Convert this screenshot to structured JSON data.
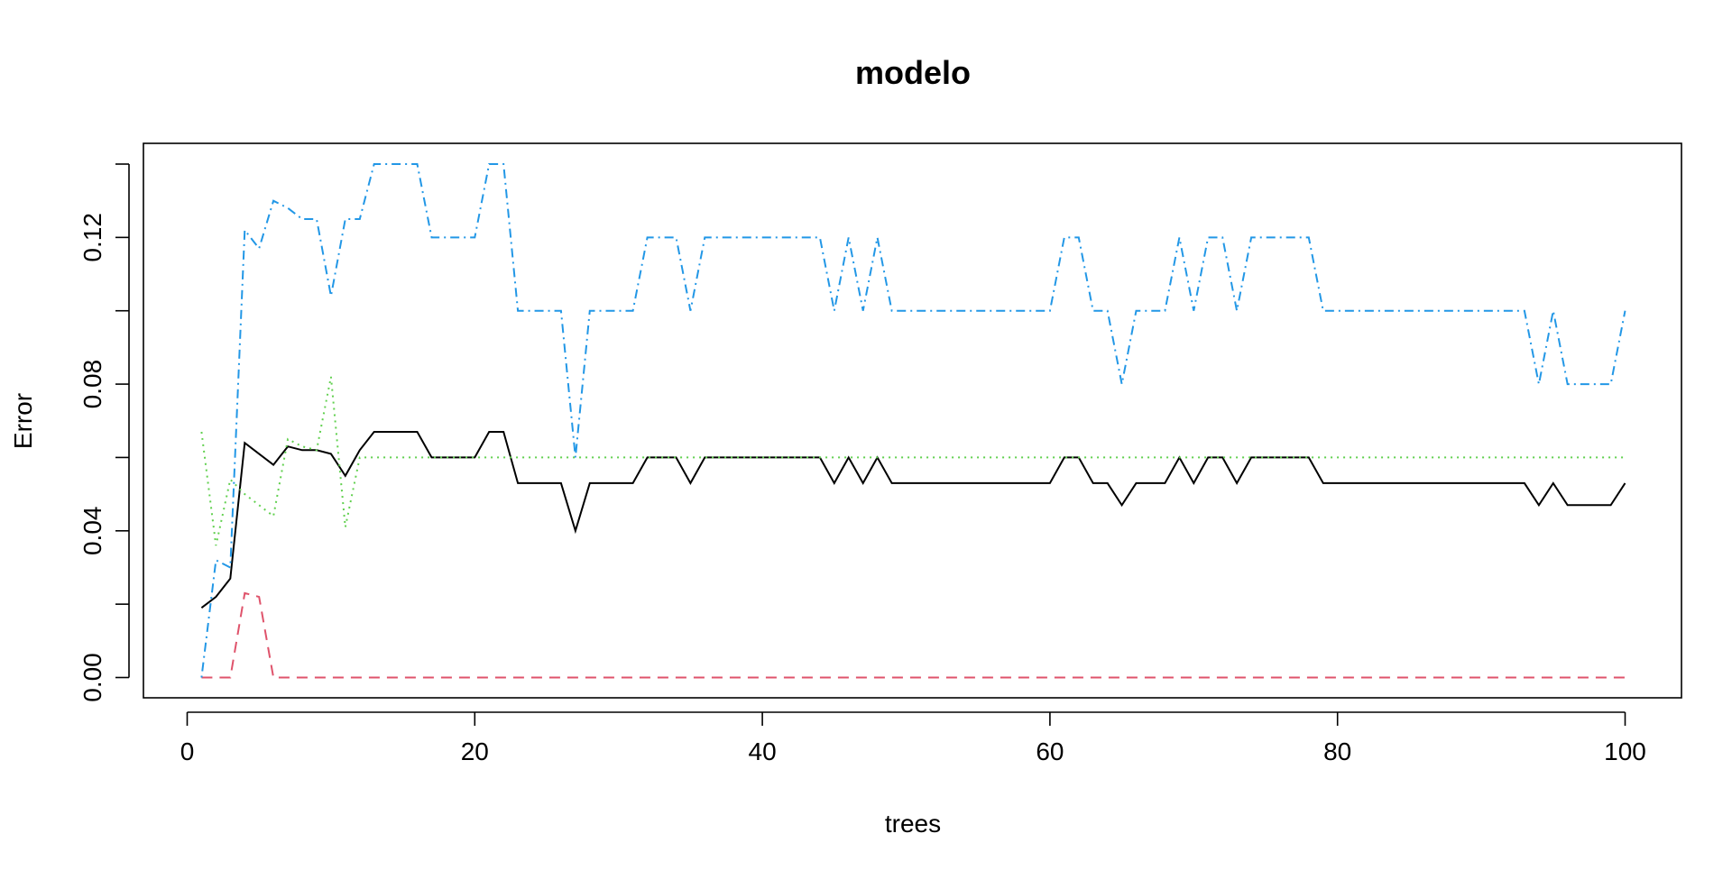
{
  "chart_data": {
    "type": "line",
    "title": "modelo",
    "xlabel": "trees",
    "ylabel": "Error",
    "xlim": [
      0,
      100
    ],
    "ylim": [
      0,
      0.14
    ],
    "xticks": [
      0,
      20,
      40,
      60,
      80,
      100
    ],
    "xtick_labels": [
      "0",
      "20",
      "40",
      "60",
      "80",
      "100"
    ],
    "yticks": [
      0.0,
      0.02,
      0.04,
      0.06,
      0.08,
      0.1,
      0.12,
      0.14
    ],
    "ytick_labels": [
      "0.00",
      "",
      "0.04",
      "",
      "0.08",
      "",
      "0.12",
      ""
    ],
    "grid": false,
    "legend": "none",
    "x": [
      1,
      2,
      3,
      4,
      5,
      6,
      7,
      8,
      9,
      10,
      11,
      12,
      13,
      14,
      15,
      16,
      17,
      18,
      19,
      20,
      21,
      22,
      23,
      24,
      25,
      26,
      27,
      28,
      29,
      30,
      31,
      32,
      33,
      34,
      35,
      36,
      37,
      38,
      39,
      40,
      41,
      42,
      43,
      44,
      45,
      46,
      47,
      48,
      49,
      50,
      51,
      52,
      53,
      54,
      55,
      56,
      57,
      58,
      59,
      60,
      61,
      62,
      63,
      64,
      65,
      66,
      67,
      68,
      69,
      70,
      71,
      72,
      73,
      74,
      75,
      76,
      77,
      78,
      79,
      80,
      81,
      82,
      83,
      84,
      85,
      86,
      87,
      88,
      89,
      90,
      91,
      92,
      93,
      94,
      95,
      96,
      97,
      98,
      99,
      100
    ],
    "series": [
      {
        "color": "#000000",
        "dash": "",
        "values": [
          0.019,
          0.022,
          0.027,
          0.064,
          0.061,
          0.058,
          0.063,
          0.062,
          0.062,
          0.061,
          0.055,
          0.062,
          0.067,
          0.067,
          0.067,
          0.067,
          0.06,
          0.06,
          0.06,
          0.06,
          0.067,
          0.067,
          0.053,
          0.053,
          0.053,
          0.053,
          0.04,
          0.053,
          0.053,
          0.053,
          0.053,
          0.06,
          0.06,
          0.06,
          0.053,
          0.06,
          0.06,
          0.06,
          0.06,
          0.06,
          0.06,
          0.06,
          0.06,
          0.06,
          0.053,
          0.06,
          0.053,
          0.06,
          0.053,
          0.053,
          0.053,
          0.053,
          0.053,
          0.053,
          0.053,
          0.053,
          0.053,
          0.053,
          0.053,
          0.053,
          0.06,
          0.06,
          0.053,
          0.053,
          0.047,
          0.053,
          0.053,
          0.053,
          0.06,
          0.053,
          0.06,
          0.06,
          0.053,
          0.06,
          0.06,
          0.06,
          0.06,
          0.06,
          0.053,
          0.053,
          0.053,
          0.053,
          0.053,
          0.053,
          0.053,
          0.053,
          0.053,
          0.053,
          0.053,
          0.053,
          0.053,
          0.053,
          0.053,
          0.047,
          0.053,
          0.047,
          0.047,
          0.047,
          0.047,
          0.053
        ]
      },
      {
        "color": "#DF536B",
        "dash": "12,8",
        "values": [
          0,
          0,
          0,
          0.023,
          0.022,
          0,
          0,
          0,
          0,
          0,
          0,
          0,
          0,
          0,
          0,
          0,
          0,
          0,
          0,
          0,
          0,
          0,
          0,
          0,
          0,
          0,
          0,
          0,
          0,
          0,
          0,
          0,
          0,
          0,
          0,
          0,
          0,
          0,
          0,
          0,
          0,
          0,
          0,
          0,
          0,
          0,
          0,
          0,
          0,
          0,
          0,
          0,
          0,
          0,
          0,
          0,
          0,
          0,
          0,
          0,
          0,
          0,
          0,
          0,
          0,
          0,
          0,
          0,
          0,
          0,
          0,
          0,
          0,
          0,
          0,
          0,
          0,
          0,
          0,
          0,
          0,
          0,
          0,
          0,
          0,
          0,
          0,
          0,
          0,
          0,
          0,
          0,
          0,
          0,
          0,
          0,
          0,
          0,
          0,
          0
        ]
      },
      {
        "color": "#61D04F",
        "dash": "2,5",
        "values": [
          0.067,
          0.036,
          0.054,
          0.05,
          0.047,
          0.044,
          0.065,
          0.063,
          0.062,
          0.082,
          0.041,
          0.06,
          0.06,
          0.06,
          0.06,
          0.06,
          0.06,
          0.06,
          0.06,
          0.06,
          0.06,
          0.06,
          0.06,
          0.06,
          0.06,
          0.06,
          0.06,
          0.06,
          0.06,
          0.06,
          0.06,
          0.06,
          0.06,
          0.06,
          0.06,
          0.06,
          0.06,
          0.06,
          0.06,
          0.06,
          0.06,
          0.06,
          0.06,
          0.06,
          0.06,
          0.06,
          0.06,
          0.06,
          0.06,
          0.06,
          0.06,
          0.06,
          0.06,
          0.06,
          0.06,
          0.06,
          0.06,
          0.06,
          0.06,
          0.06,
          0.06,
          0.06,
          0.06,
          0.06,
          0.06,
          0.06,
          0.06,
          0.06,
          0.06,
          0.06,
          0.06,
          0.06,
          0.06,
          0.06,
          0.06,
          0.06,
          0.06,
          0.06,
          0.06,
          0.06,
          0.06,
          0.06,
          0.06,
          0.06,
          0.06,
          0.06,
          0.06,
          0.06,
          0.06,
          0.06,
          0.06,
          0.06,
          0.06,
          0.06,
          0.06,
          0.06,
          0.06,
          0.06,
          0.06,
          0.06
        ]
      },
      {
        "color": "#2297E6",
        "dash": "2,5,10,5",
        "values": [
          0,
          0.032,
          0.03,
          0.122,
          0.117,
          0.13,
          0.128,
          0.125,
          0.125,
          0.104,
          0.125,
          0.125,
          0.14,
          0.14,
          0.14,
          0.14,
          0.12,
          0.12,
          0.12,
          0.12,
          0.14,
          0.14,
          0.1,
          0.1,
          0.1,
          0.1,
          0.06,
          0.1,
          0.1,
          0.1,
          0.1,
          0.12,
          0.12,
          0.12,
          0.1,
          0.12,
          0.12,
          0.12,
          0.12,
          0.12,
          0.12,
          0.12,
          0.12,
          0.12,
          0.1,
          0.12,
          0.1,
          0.12,
          0.1,
          0.1,
          0.1,
          0.1,
          0.1,
          0.1,
          0.1,
          0.1,
          0.1,
          0.1,
          0.1,
          0.1,
          0.12,
          0.12,
          0.1,
          0.1,
          0.08,
          0.1,
          0.1,
          0.1,
          0.12,
          0.1,
          0.12,
          0.12,
          0.1,
          0.12,
          0.12,
          0.12,
          0.12,
          0.12,
          0.1,
          0.1,
          0.1,
          0.1,
          0.1,
          0.1,
          0.1,
          0.1,
          0.1,
          0.1,
          0.1,
          0.1,
          0.1,
          0.1,
          0.1,
          0.08,
          0.1,
          0.08,
          0.08,
          0.08,
          0.08,
          0.1
        ]
      }
    ]
  }
}
